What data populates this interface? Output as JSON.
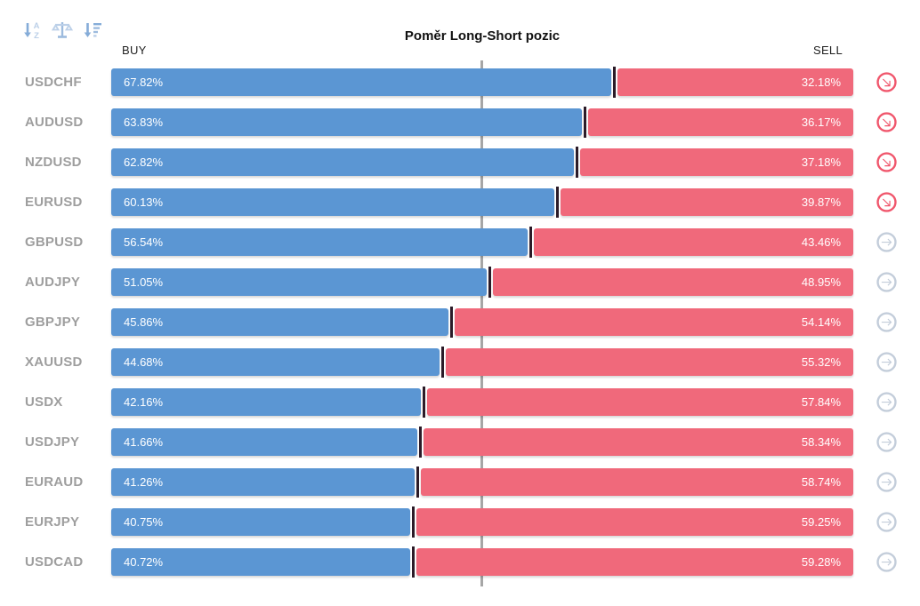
{
  "title": "Poměr Long-Short pozic",
  "headers": {
    "buy": "BUY",
    "sell": "SELL"
  },
  "toolbar": {
    "icons": [
      "sort-alphabetical-icon",
      "balance-scale-icon",
      "sort-amount-icon"
    ]
  },
  "colors": {
    "buy_bar": "#5b96d3",
    "sell_bar": "#f0697b",
    "junction_divider": "#2b1b28",
    "center_line": "#a6a6a6",
    "symbol_label": "#9e9e9e",
    "trend_down_icon": "#f0566c",
    "trend_right_icon": "#c3cdda",
    "toolbar_icon_dark": "#85acd8",
    "toolbar_icon_light": "#bcd0e8"
  },
  "chart_data": {
    "type": "bar",
    "orientation": "horizontal",
    "stacked": true,
    "title": "Poměr Long-Short pozic",
    "categories": [
      "USDCHF",
      "AUDUSD",
      "NZDUSD",
      "EURUSD",
      "GBPUSD",
      "AUDJPY",
      "GBPJPY",
      "XAUUSD",
      "USDX",
      "USDJPY",
      "EURAUD",
      "EURJPY",
      "USDCAD"
    ],
    "series": [
      {
        "name": "BUY",
        "color": "#5b96d3",
        "values": [
          67.82,
          63.83,
          62.82,
          60.13,
          56.54,
          51.05,
          45.86,
          44.68,
          42.16,
          41.66,
          41.26,
          40.75,
          40.72
        ]
      },
      {
        "name": "SELL",
        "color": "#f0697b",
        "values": [
          32.18,
          36.17,
          37.18,
          39.87,
          43.46,
          48.95,
          54.14,
          55.32,
          57.84,
          58.34,
          58.74,
          59.25,
          59.28
        ]
      }
    ],
    "xlim": [
      0,
      100
    ],
    "center_line_at": 50,
    "value_label_format": "percent",
    "legend": "none",
    "grid": "off"
  },
  "rows": [
    {
      "symbol": "USDCHF",
      "buy": "67.82%",
      "sell": "32.18%",
      "buy_value": 67.82,
      "sell_value": 32.18,
      "trend": "down"
    },
    {
      "symbol": "AUDUSD",
      "buy": "63.83%",
      "sell": "36.17%",
      "buy_value": 63.83,
      "sell_value": 36.17,
      "trend": "down"
    },
    {
      "symbol": "NZDUSD",
      "buy": "62.82%",
      "sell": "37.18%",
      "buy_value": 62.82,
      "sell_value": 37.18,
      "trend": "down"
    },
    {
      "symbol": "EURUSD",
      "buy": "60.13%",
      "sell": "39.87%",
      "buy_value": 60.13,
      "sell_value": 39.87,
      "trend": "down"
    },
    {
      "symbol": "GBPUSD",
      "buy": "56.54%",
      "sell": "43.46%",
      "buy_value": 56.54,
      "sell_value": 43.46,
      "trend": "right"
    },
    {
      "symbol": "AUDJPY",
      "buy": "51.05%",
      "sell": "48.95%",
      "buy_value": 51.05,
      "sell_value": 48.95,
      "trend": "right"
    },
    {
      "symbol": "GBPJPY",
      "buy": "45.86%",
      "sell": "54.14%",
      "buy_value": 45.86,
      "sell_value": 54.14,
      "trend": "right"
    },
    {
      "symbol": "XAUUSD",
      "buy": "44.68%",
      "sell": "55.32%",
      "buy_value": 44.68,
      "sell_value": 55.32,
      "trend": "right"
    },
    {
      "symbol": "USDX",
      "buy": "42.16%",
      "sell": "57.84%",
      "buy_value": 42.16,
      "sell_value": 57.84,
      "trend": "right"
    },
    {
      "symbol": "USDJPY",
      "buy": "41.66%",
      "sell": "58.34%",
      "buy_value": 41.66,
      "sell_value": 58.34,
      "trend": "right"
    },
    {
      "symbol": "EURAUD",
      "buy": "41.26%",
      "sell": "58.74%",
      "buy_value": 41.26,
      "sell_value": 58.74,
      "trend": "right"
    },
    {
      "symbol": "EURJPY",
      "buy": "40.75%",
      "sell": "59.25%",
      "buy_value": 40.75,
      "sell_value": 59.25,
      "trend": "right"
    },
    {
      "symbol": "USDCAD",
      "buy": "40.72%",
      "sell": "59.28%",
      "buy_value": 40.72,
      "sell_value": 59.28,
      "trend": "right"
    }
  ]
}
